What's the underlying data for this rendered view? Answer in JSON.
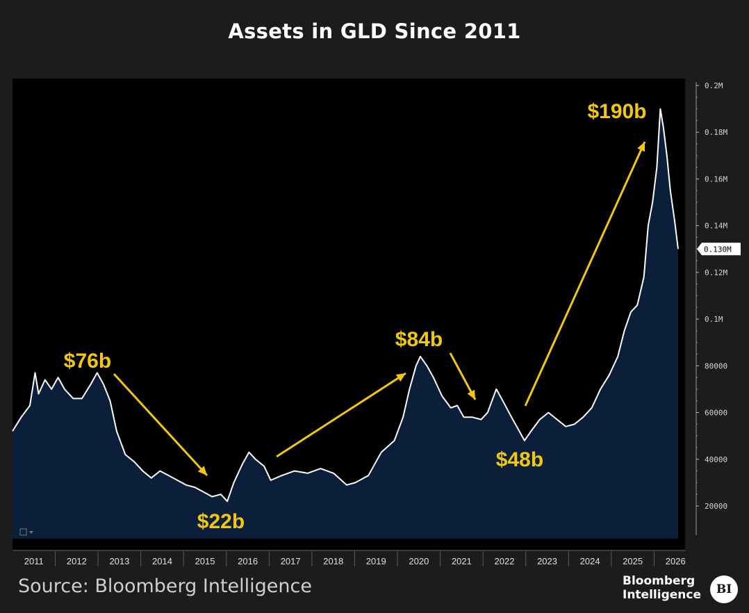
{
  "title": "Assets in GLD Since 2011",
  "source": "Source: Bloomberg Intelligence",
  "brand": {
    "line1": "Bloomberg",
    "line2": "Intelligence",
    "logo": "BI"
  },
  "chart_data": {
    "type": "area",
    "title": "Assets in GLD Since 2011",
    "xlabel": "",
    "ylabel": "",
    "x_tick_labels": [
      "2011",
      "2012",
      "2013",
      "2014",
      "2015",
      "2016",
      "2017",
      "2018",
      "2019",
      "2020",
      "2021",
      "2022",
      "2023",
      "2024",
      "2025",
      "2026"
    ],
    "y_tick_labels": [
      "20000",
      "40000",
      "60000",
      "80000",
      "0.1M",
      "0.12M",
      "0.14M",
      "0.16M",
      "0.18M",
      "0.2M"
    ],
    "y_tick_values": [
      20000,
      40000,
      60000,
      80000,
      100000,
      120000,
      140000,
      160000,
      180000,
      200000
    ],
    "ylim": [
      6000,
      204000
    ],
    "xlim": [
      2011.0,
      2026.5
    ],
    "last_value_label": "0.130M",
    "last_value": 130000,
    "grid": false,
    "colors": {
      "fill": "#0b1f3a",
      "line": "#ffffff",
      "annotation": "#f2c80f",
      "background": "#000000"
    },
    "series": [
      {
        "points": [
          [
            2011.0,
            52000
          ],
          [
            2011.2,
            58000
          ],
          [
            2011.4,
            63000
          ],
          [
            2011.52,
            77000
          ],
          [
            2011.6,
            68000
          ],
          [
            2011.75,
            74000
          ],
          [
            2011.9,
            70000
          ],
          [
            2012.05,
            75000
          ],
          [
            2012.2,
            70000
          ],
          [
            2012.4,
            66000
          ],
          [
            2012.6,
            66000
          ],
          [
            2012.8,
            72000
          ],
          [
            2012.95,
            77000
          ],
          [
            2013.1,
            72000
          ],
          [
            2013.25,
            65000
          ],
          [
            2013.4,
            52000
          ],
          [
            2013.6,
            42000
          ],
          [
            2013.8,
            39000
          ],
          [
            2014.0,
            35000
          ],
          [
            2014.2,
            32000
          ],
          [
            2014.4,
            35000
          ],
          [
            2014.6,
            33000
          ],
          [
            2014.8,
            31000
          ],
          [
            2015.0,
            29000
          ],
          [
            2015.2,
            28000
          ],
          [
            2015.4,
            26000
          ],
          [
            2015.6,
            24000
          ],
          [
            2015.8,
            25000
          ],
          [
            2015.95,
            22000
          ],
          [
            2016.1,
            30000
          ],
          [
            2016.3,
            38000
          ],
          [
            2016.45,
            43000
          ],
          [
            2016.6,
            40000
          ],
          [
            2016.8,
            37000
          ],
          [
            2016.95,
            31000
          ],
          [
            2017.2,
            33000
          ],
          [
            2017.5,
            35000
          ],
          [
            2017.8,
            34000
          ],
          [
            2018.1,
            36000
          ],
          [
            2018.4,
            34000
          ],
          [
            2018.7,
            29000
          ],
          [
            2018.9,
            30000
          ],
          [
            2019.2,
            33000
          ],
          [
            2019.5,
            43000
          ],
          [
            2019.8,
            48000
          ],
          [
            2020.0,
            58000
          ],
          [
            2020.15,
            70000
          ],
          [
            2020.3,
            80000
          ],
          [
            2020.4,
            84000
          ],
          [
            2020.55,
            80000
          ],
          [
            2020.7,
            75000
          ],
          [
            2020.9,
            67000
          ],
          [
            2021.1,
            62000
          ],
          [
            2021.25,
            63000
          ],
          [
            2021.4,
            58000
          ],
          [
            2021.6,
            58000
          ],
          [
            2021.8,
            57000
          ],
          [
            2021.95,
            60000
          ],
          [
            2022.15,
            70000
          ],
          [
            2022.3,
            65000
          ],
          [
            2022.5,
            58000
          ],
          [
            2022.65,
            53000
          ],
          [
            2022.8,
            48000
          ],
          [
            2022.95,
            52000
          ],
          [
            2023.15,
            57000
          ],
          [
            2023.35,
            60000
          ],
          [
            2023.55,
            57000
          ],
          [
            2023.75,
            54000
          ],
          [
            2023.95,
            55000
          ],
          [
            2024.15,
            58000
          ],
          [
            2024.35,
            62000
          ],
          [
            2024.55,
            70000
          ],
          [
            2024.75,
            76000
          ],
          [
            2024.95,
            84000
          ],
          [
            2025.1,
            95000
          ],
          [
            2025.25,
            103000
          ],
          [
            2025.4,
            106000
          ],
          [
            2025.55,
            118000
          ],
          [
            2025.65,
            140000
          ],
          [
            2025.75,
            150000
          ],
          [
            2025.85,
            165000
          ],
          [
            2025.93,
            190000
          ],
          [
            2026.0,
            182000
          ],
          [
            2026.08,
            170000
          ],
          [
            2026.16,
            155000
          ],
          [
            2026.26,
            142000
          ],
          [
            2026.34,
            130000
          ]
        ]
      }
    ],
    "annotations": [
      {
        "text": "$76b"
      },
      {
        "text": "$22b"
      },
      {
        "text": "$84b"
      },
      {
        "text": "$48b"
      },
      {
        "text": "$190b"
      }
    ]
  }
}
